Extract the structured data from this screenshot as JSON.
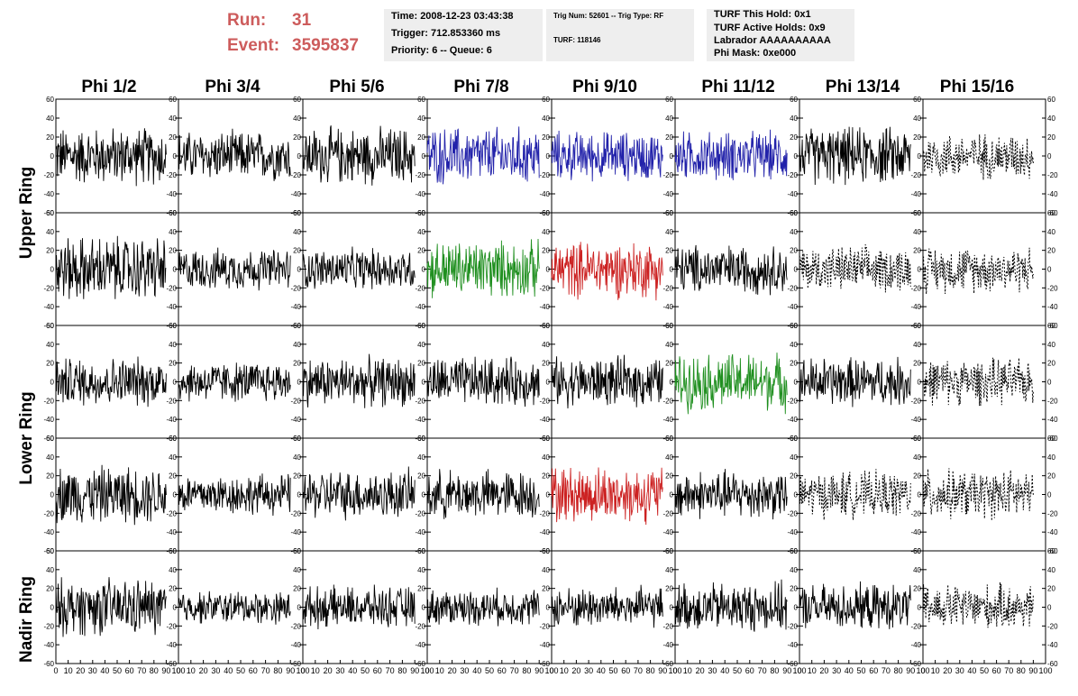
{
  "header": {
    "run_label": "Run:",
    "run_value": "31",
    "event_label": "Event:",
    "event_value": "3595837",
    "time": "Time: 2008-12-23 03:43:38",
    "trigger": "Trigger: 712.853360 ms",
    "priority": "Priority: 6 -- Queue: 6",
    "trig_num": "Trig Num: 52601 -- Trig Type: RF",
    "turf": "TURF: 118146",
    "turf_this_hold": "TURF This Hold: 0x1",
    "turf_active_holds": "TURF Active Holds: 0x9",
    "labrador": "Labrador AAAAAAAAAA",
    "phi_mask": "Phi Mask: 0xe000"
  },
  "columns": [
    "Phi 1/2",
    "Phi 3/4",
    "Phi 5/6",
    "Phi 7/8",
    "Phi 9/10",
    "Phi 11/12",
    "Phi 13/14",
    "Phi 15/16"
  ],
  "row_labels": [
    "Upper Ring",
    "Lower Ring",
    "Nadir Ring"
  ],
  "chart_data": {
    "type": "line",
    "ylim": [
      -60,
      60
    ],
    "xlim": [
      0,
      100
    ],
    "y_ticks": [
      "60",
      "40",
      "20",
      "0",
      "-20",
      "-40",
      "-60"
    ],
    "x_ticks": [
      "0",
      "10",
      "20",
      "30",
      "40",
      "50",
      "60",
      "70",
      "80",
      "90",
      "100"
    ],
    "colors": {
      "black": "#000000",
      "blue": "#2222aa",
      "green": "#1f8f1f",
      "red": "#cc2222"
    },
    "panels": [
      [
        "black",
        "black",
        "black",
        "blue",
        "blue",
        "blue",
        "black",
        "black-dashed"
      ],
      [
        "black",
        "black",
        "black",
        "green",
        "red",
        "black",
        "black-dashed",
        "black-dashed"
      ],
      [
        "black",
        "black",
        "black",
        "black",
        "black",
        "green",
        "black",
        "black-dashed"
      ],
      [
        "black",
        "black",
        "black",
        "black",
        "red",
        "black",
        "black-dashed",
        "black-dashed"
      ],
      [
        "black",
        "black",
        "black",
        "black",
        "black",
        "black",
        "black",
        "black-dashed"
      ]
    ],
    "panel_amplitude": [
      [
        35,
        30,
        35,
        35,
        30,
        30,
        35,
        28
      ],
      [
        40,
        25,
        25,
        35,
        35,
        30,
        28,
        28
      ],
      [
        30,
        25,
        30,
        30,
        30,
        35,
        30,
        28
      ],
      [
        35,
        25,
        30,
        30,
        35,
        30,
        28,
        30
      ],
      [
        35,
        20,
        25,
        22,
        25,
        30,
        28,
        28
      ]
    ]
  }
}
